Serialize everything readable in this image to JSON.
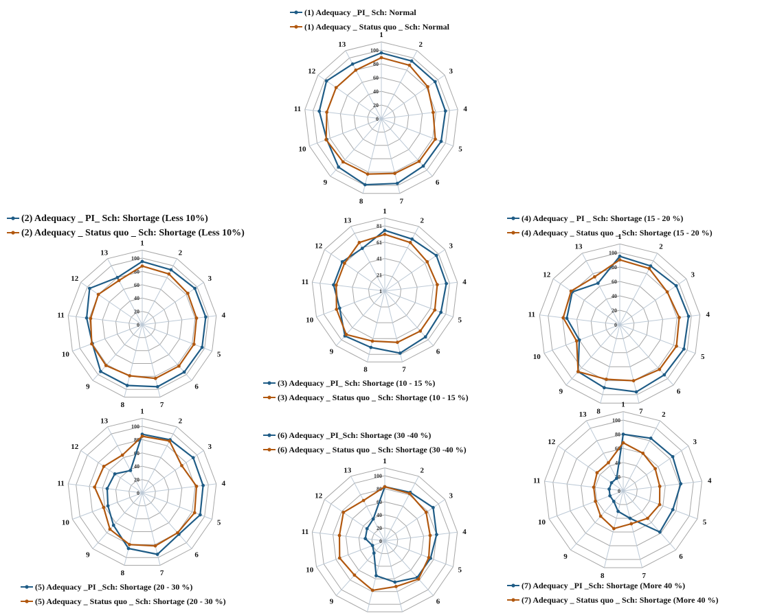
{
  "colors": {
    "pi": "#1f5c86",
    "status_quo": "#b1580f",
    "grid": "#a6a6a6",
    "spoke": "#bcc9d6"
  },
  "chart_data": [
    {
      "type": "radar",
      "panel": "(1) Normal",
      "categories": [
        "1",
        "2",
        "3",
        "4",
        "5",
        "6",
        "7",
        "8",
        "9",
        "10",
        "11",
        "12",
        "13"
      ],
      "r_ticks": [
        "0",
        "20",
        "40",
        "60",
        "80",
        "100"
      ],
      "rlim": [
        0,
        100
      ],
      "legend_position": "top",
      "series": [
        {
          "name": "(1) Adequacy _PI_ Sch: Normal",
          "color": "pi",
          "values": [
            96,
            95,
            95,
            94,
            93,
            92,
            97,
            99,
            94,
            85,
            91,
            97,
            90
          ]
        },
        {
          "name": "(1) Adequacy _ Status quo _ Sch: Normal",
          "color": "status_quo",
          "values": [
            89,
            88,
            82,
            76,
            84,
            83,
            82,
            83,
            84,
            86,
            80,
            80,
            80
          ]
        }
      ]
    },
    {
      "type": "radar",
      "panel": "(2) Shortage (Less 10%)",
      "categories": [
        "1",
        "2",
        "3",
        "4",
        "5",
        "6",
        "7",
        "8",
        "9",
        "10",
        "11",
        "12",
        "13"
      ],
      "r_ticks": [
        "0",
        "20",
        "40",
        "60",
        "80",
        "100"
      ],
      "rlim": [
        0,
        100
      ],
      "legend_position": "top",
      "series": [
        {
          "name": "(2) Adequacy _ PI_ Sch: Shortage (Less 10%)",
          "color": "pi",
          "values": [
            95,
            93,
            96,
            96,
            96,
            95,
            96,
            94,
            94,
            80,
            84,
            96,
            80
          ]
        },
        {
          "name": "(2) Adequacy _ Status quo _ Sch: Shortage (Less 10%)",
          "color": "status_quo",
          "values": [
            88,
            86,
            83,
            82,
            83,
            83,
            83,
            79,
            82,
            81,
            78,
            80,
            75
          ]
        }
      ]
    },
    {
      "type": "radar",
      "panel": "(3) Shortage (10 - 15 %)",
      "categories": [
        "1",
        "2",
        "3",
        "4",
        "5",
        "6",
        "7",
        "8",
        "9",
        "10",
        "11",
        "12",
        "13"
      ],
      "r_ticks": [
        "1",
        "21",
        "41",
        "61",
        "81"
      ],
      "rlim": [
        1,
        101
      ],
      "legend_position": "bottom",
      "series": [
        {
          "name": "(3) Adequacy _PI_ Sch: Shortage (10 - 15 %)",
          "color": "pi",
          "values": [
            94,
            91,
            97,
            96,
            93,
            95,
            99,
            90,
            93,
            75,
            80,
            80,
            75
          ]
        },
        {
          "name": "(3) Adequacy _ Status quo _ Sch: Shortage (10 - 15 %)",
          "color": "status_quo",
          "values": [
            88,
            85,
            80,
            82,
            83,
            83,
            82,
            80,
            90,
            80,
            76,
            76,
            85
          ]
        }
      ]
    },
    {
      "type": "radar",
      "panel": "(4) Shortage (15 - 20 %)",
      "categories": [
        "1",
        "2",
        "3",
        "4",
        "5",
        "6",
        "7",
        "8",
        "9",
        "10",
        "11",
        "12",
        "13"
      ],
      "r_ticks": [
        "0",
        "20",
        "40",
        "60",
        "80",
        "100"
      ],
      "rlim": [
        0,
        100
      ],
      "legend_position": "top",
      "series": [
        {
          "name": "(4) Adequacy _ PI _ Sch: Shortage (15 - 20 %)",
          "color": "pi",
          "values": [
            95,
            92,
            95,
            96,
            95,
            93,
            96,
            90,
            87,
            60,
            74,
            80,
            65
          ]
        },
        {
          "name": "(4) Adequacy _ Status quo _ Sch: Shortage (15 - 20 %)",
          "color": "status_quo",
          "values": [
            90,
            88,
            80,
            83,
            84,
            83,
            80,
            78,
            87,
            64,
            79,
            82,
            75
          ]
        }
      ]
    },
    {
      "type": "radar",
      "panel": "(5) Shortage (20 - 30 %)",
      "categories": [
        "1",
        "2",
        "3",
        "4",
        "5",
        "6",
        "7",
        "8",
        "9",
        "10",
        "11",
        "12",
        "13"
      ],
      "r_ticks": [
        "0",
        "20",
        "40",
        "60",
        "80",
        "100"
      ],
      "rlim": [
        0,
        100
      ],
      "legend_position": "bottom",
      "series": [
        {
          "name": "(5) Adequacy _PI _Sch: Shortage (20 - 30 %)",
          "color": "pi",
          "values": [
            88,
            90,
            93,
            92,
            93,
            83,
            95,
            86,
            65,
            55,
            53,
            50,
            38
          ]
        },
        {
          "name": "(5) Adequacy _ Status quo _ Sch: Shortage (20 - 30 %)",
          "color": "status_quo",
          "values": [
            85,
            88,
            72,
            82,
            84,
            80,
            82,
            80,
            73,
            62,
            72,
            70,
            64
          ]
        }
      ]
    },
    {
      "type": "radar",
      "panel": "(6) Shortage (30 -40 %)",
      "categories": [
        "1",
        "2",
        "3",
        "4",
        "5",
        "6",
        "7",
        "8",
        "9",
        "10",
        "11",
        "12",
        "13"
      ],
      "r_ticks": [
        "0",
        "20",
        "40",
        "60",
        "80",
        "100"
      ],
      "rlim": [
        0,
        100
      ],
      "legend_position": "top",
      "series": [
        {
          "name": "(6) Adequacy _PI_Sch: Shortage (30 -40 %)",
          "color": "pi",
          "values": [
            83,
            84,
            90,
            80,
            75,
            75,
            65,
            55,
            25,
            20,
            30,
            33,
            38
          ]
        },
        {
          "name": "(6) Adequacy _ Status quo _ Sch: Shortage (30 -40 %)",
          "color": "status_quo",
          "values": [
            83,
            82,
            77,
            70,
            72,
            78,
            72,
            78,
            70,
            74,
            70,
            77,
            70
          ]
        }
      ]
    },
    {
      "type": "radar",
      "panel": "(7) Shortage (More 40 %)",
      "categories": [
        "1",
        "2",
        "3",
        "4",
        "5",
        "6",
        "7",
        "8",
        "9",
        "10",
        "11",
        "12",
        "13"
      ],
      "r_ticks": [
        "0",
        "20",
        "40",
        "60",
        "80",
        "100"
      ],
      "rlim": [
        0,
        100
      ],
      "legend_position": "bottom",
      "series": [
        {
          "name": "(7) Adequacy _PI _Sch: Shortage (More 40 %)",
          "color": "pi",
          "values": [
            80,
            84,
            85,
            82,
            75,
            78,
            40,
            30,
            20,
            20,
            20,
            20,
            20
          ]
        },
        {
          "name": "(7) Adequacy _ Status quo _ Sch: Shortage (More 40 %)",
          "color": "status_quo",
          "values": [
            68,
            60,
            55,
            52,
            55,
            52,
            48,
            55,
            48,
            42,
            42,
            45,
            45
          ]
        }
      ]
    }
  ]
}
